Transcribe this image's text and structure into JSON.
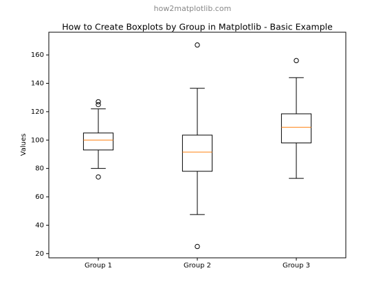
{
  "header": "how2matplotlib.com",
  "chart_data": {
    "type": "box",
    "title": "How to Create Boxplots by Group in Matplotlib - Basic Example",
    "y_label": "Values",
    "categories": [
      "Group 1",
      "Group 2",
      "Group 3"
    ],
    "boxes": [
      {
        "whislo": 80,
        "q1": 93,
        "med": 100,
        "q3": 105,
        "whishi": 122,
        "fliers": [
          125,
          127,
          74
        ]
      },
      {
        "whislo": 47.5,
        "q1": 78,
        "med": 91.5,
        "q3": 103.5,
        "whishi": 136.5,
        "fliers": [
          167,
          25
        ]
      },
      {
        "whislo": 73,
        "q1": 98,
        "med": 109,
        "q3": 118.5,
        "whishi": 144,
        "fliers": [
          156
        ]
      }
    ],
    "color": "#000000",
    "median_color": "#ff7f0e",
    "ylim": [
      17,
      176
    ],
    "yticks": [
      20,
      40,
      60,
      80,
      100,
      120,
      140,
      160
    ],
    "grid": false
  }
}
